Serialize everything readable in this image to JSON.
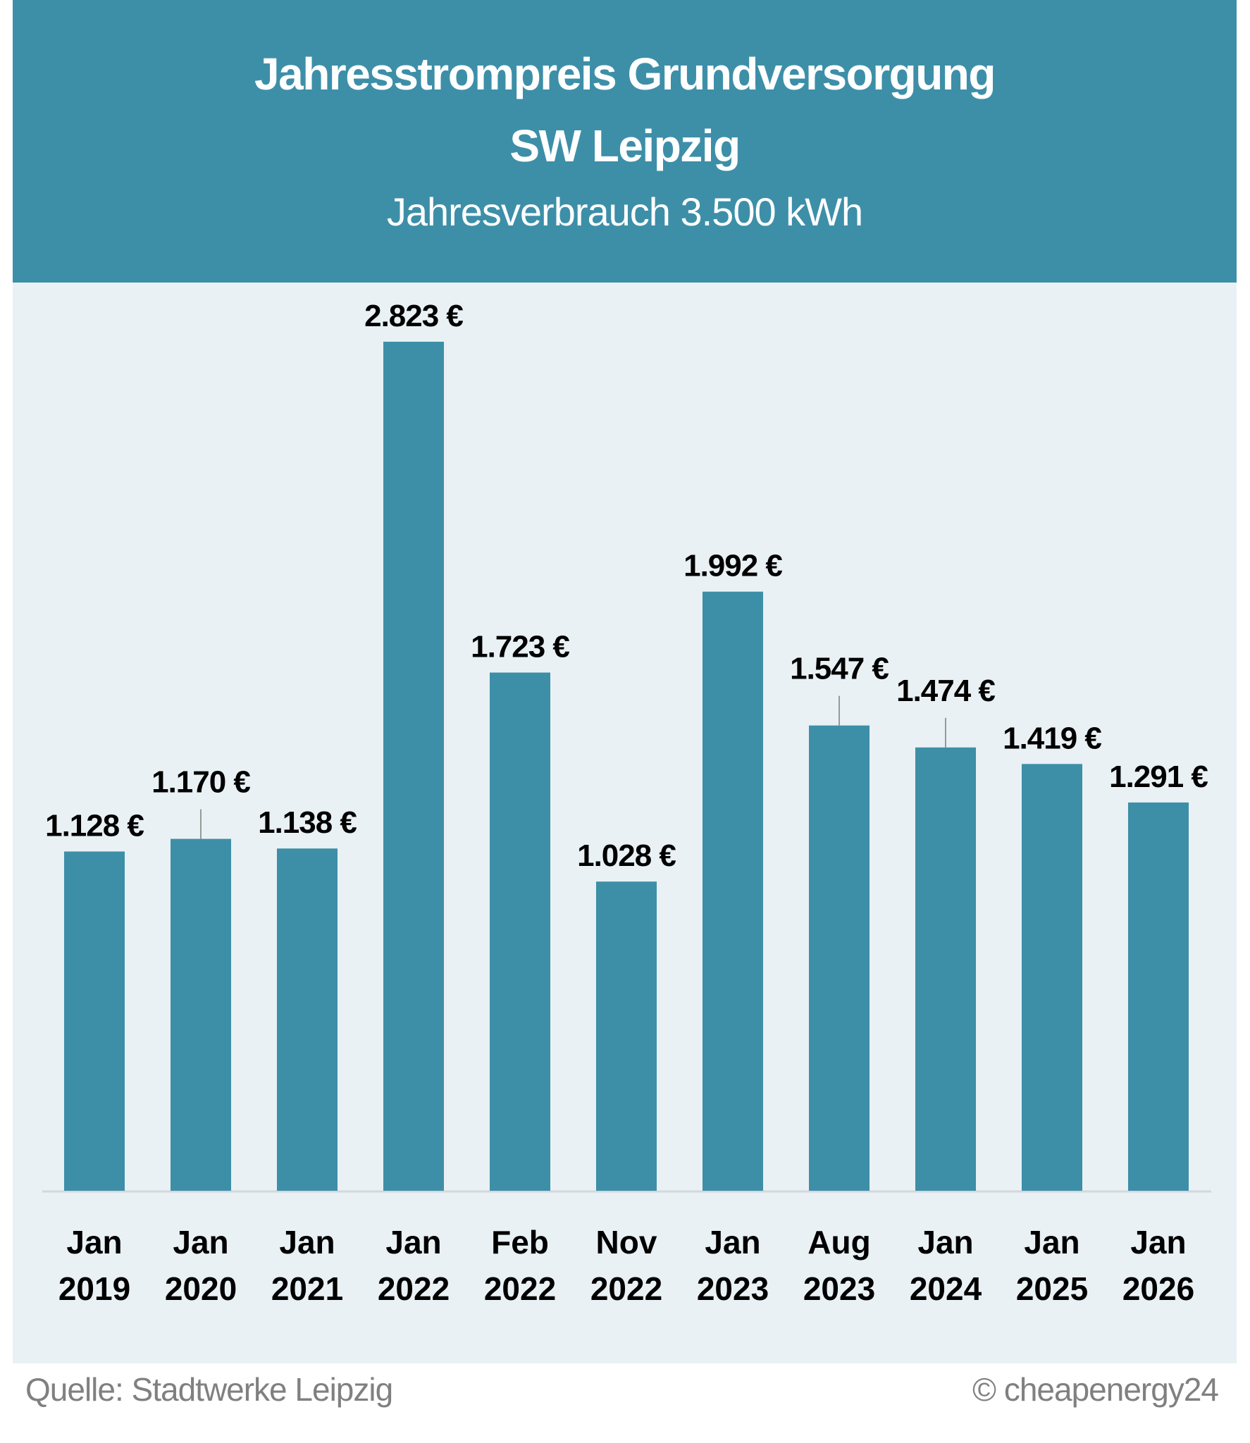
{
  "chart_data": {
    "type": "bar",
    "title": "Jahresstrompreis Grundversorgung",
    "title_line2": "SW Leipzig",
    "subtitle": "Jahresverbrauch 3.500 kWh",
    "categories": [
      [
        "Jan",
        "2019"
      ],
      [
        "Jan",
        "2020"
      ],
      [
        "Jan",
        "2021"
      ],
      [
        "Jan",
        "2022"
      ],
      [
        "Feb",
        "2022"
      ],
      [
        "Nov",
        "2022"
      ],
      [
        "Jan",
        "2023"
      ],
      [
        "Aug",
        "2023"
      ],
      [
        "Jan",
        "2024"
      ],
      [
        "Jan",
        "2025"
      ],
      [
        "Jan",
        "2026"
      ]
    ],
    "values": [
      1128,
      1170,
      1138,
      2823,
      1723,
      1028,
      1992,
      1547,
      1474,
      1419,
      1291
    ],
    "data_labels": [
      "1.128 €",
      "1.170 €",
      "1.138 €",
      "2.823 €",
      "1.723 €",
      "1.028 €",
      "1.992 €",
      "1.547 €",
      "1.474 €",
      "1.419 €",
      "1.291 €"
    ],
    "leader_line_labels": [
      1,
      7,
      8
    ],
    "xlabel": "",
    "ylabel": "",
    "ylim": [
      0,
      2823
    ],
    "grid": false,
    "legend": "none",
    "colors": {
      "bar": "#3d8fa8",
      "header": "#3d8fa8",
      "plot_background": "#e9f1f4",
      "axis": "#d3d8da",
      "footer_text": "#808080"
    }
  },
  "footer": {
    "source": "Quelle: Stadtwerke Leipzig",
    "copyright": "© cheapenergy24"
  }
}
